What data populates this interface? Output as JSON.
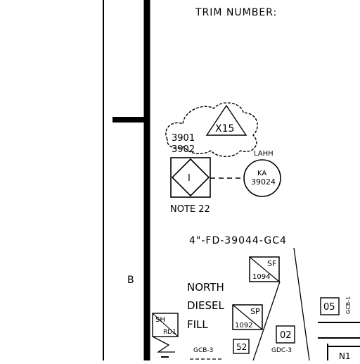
{
  "header": {
    "trim_label": "TRIM NUMBER:"
  },
  "zone_label": "B",
  "revision_cloud": {
    "triangle_label": "X15",
    "tags": [
      "3901",
      "3902"
    ]
  },
  "instrument": {
    "symbol": "I",
    "note": "NOTE 22"
  },
  "alarm_bubble": {
    "tag_above": "LAHH",
    "letters": "KA",
    "number": "39024"
  },
  "line_number": "4\"-FD-39044-GC4",
  "vents": [
    {
      "letters": "SF",
      "number": "1094"
    },
    {
      "letters": "SP",
      "number": "1092"
    },
    {
      "letters": "SH",
      "number": "RD1"
    }
  ],
  "equipment_label": {
    "line1": "NORTH",
    "line2": "DIESEL",
    "line3": "FILL"
  },
  "boxes": {
    "b52": "52",
    "b02": "02",
    "b05": "05"
  },
  "small_labels": {
    "gcb3": "GCB-3",
    "gdc3": "GDC-3",
    "gcb1": "GCB-1",
    "n1": "N1"
  }
}
